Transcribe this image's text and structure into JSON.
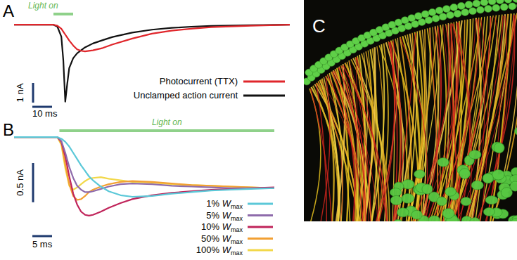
{
  "chart_data": [
    {
      "type": "line",
      "title": "A",
      "x": [
        0,
        15,
        20,
        22,
        24,
        25,
        26,
        27,
        28,
        30,
        32,
        34,
        36,
        40,
        45,
        50,
        60,
        70,
        80,
        90,
        100,
        120,
        140
      ],
      "xlim": [
        0,
        140
      ],
      "ylim": [
        -4.2,
        0.4
      ],
      "tick_labels": false,
      "legend": "bottom-right",
      "light_on": {
        "label": "Light on",
        "start": 20,
        "end": 30
      },
      "x_scale_bar": {
        "value": 10,
        "label": "10 ms"
      },
      "y_scale_bar": {
        "value": 1,
        "label": "1 nA"
      },
      "series": [
        {
          "name": "Photocurrent (TTX)",
          "color": "#e0262b",
          "values": [
            0,
            0,
            0,
            -0.05,
            -0.2,
            -0.35,
            -0.5,
            -0.65,
            -0.8,
            -1.05,
            -1.25,
            -1.32,
            -1.35,
            -1.3,
            -1.18,
            -1.0,
            -0.7,
            -0.45,
            -0.3,
            -0.2,
            -0.12,
            -0.05,
            0
          ]
        },
        {
          "name": "Unclamped action current",
          "color": "#111111",
          "values": [
            0,
            0,
            0,
            -0.1,
            -0.6,
            -1.8,
            -3.9,
            -3.0,
            -2.2,
            -1.7,
            -1.45,
            -1.3,
            -1.15,
            -0.95,
            -0.78,
            -0.62,
            -0.4,
            -0.25,
            -0.16,
            -0.1,
            -0.06,
            -0.02,
            0
          ]
        }
      ]
    },
    {
      "type": "line",
      "title": "B",
      "x": [
        0,
        11,
        12,
        13,
        14,
        15,
        16,
        17,
        18,
        19,
        20,
        22,
        24,
        27,
        30,
        35,
        40,
        45,
        50,
        55,
        60,
        66
      ],
      "xlim": [
        0,
        66
      ],
      "ylim": [
        -1.1,
        0.1
      ],
      "tick_labels": false,
      "legend": "bottom-right",
      "light_on": {
        "label": "Light on",
        "start": 11.5,
        "end": 66
      },
      "x_scale_bar": {
        "value": 5,
        "label": "5 ms"
      },
      "y_scale_bar": {
        "value": 0.5,
        "label": "0.5 nA"
      },
      "series": [
        {
          "name": "1% Wmax",
          "color": "#5bc8d8",
          "values": [
            0,
            0,
            -0.02,
            -0.06,
            -0.12,
            -0.2,
            -0.28,
            -0.36,
            -0.43,
            -0.5,
            -0.55,
            -0.63,
            -0.69,
            -0.74,
            -0.76,
            -0.75,
            -0.72,
            -0.7,
            -0.68,
            -0.67,
            -0.66,
            -0.65
          ]
        },
        {
          "name": "5% Wmax",
          "color": "#8e6bab",
          "values": [
            0,
            0,
            -0.05,
            -0.2,
            -0.38,
            -0.52,
            -0.62,
            -0.67,
            -0.7,
            -0.7,
            -0.69,
            -0.66,
            -0.63,
            -0.6,
            -0.59,
            -0.6,
            -0.62,
            -0.63,
            -0.64,
            -0.65,
            -0.65,
            -0.65
          ]
        },
        {
          "name": "10% Wmax",
          "color": "#c0245a",
          "values": [
            0,
            0,
            -0.06,
            -0.25,
            -0.5,
            -0.72,
            -0.86,
            -0.95,
            -0.99,
            -1.0,
            -0.99,
            -0.95,
            -0.9,
            -0.84,
            -0.79,
            -0.74,
            -0.71,
            -0.69,
            -0.67,
            -0.66,
            -0.65,
            -0.64
          ]
        },
        {
          "name": "50% Wmax",
          "color": "#f2a033",
          "values": [
            0,
            0,
            -0.08,
            -0.35,
            -0.6,
            -0.75,
            -0.8,
            -0.79,
            -0.75,
            -0.7,
            -0.67,
            -0.63,
            -0.6,
            -0.57,
            -0.56,
            -0.57,
            -0.59,
            -0.61,
            -0.62,
            -0.63,
            -0.64,
            -0.65
          ]
        },
        {
          "name": "100% Wmax",
          "color": "#f2d84a",
          "values": [
            0,
            0,
            -0.1,
            -0.4,
            -0.62,
            -0.67,
            -0.64,
            -0.6,
            -0.56,
            -0.53,
            -0.52,
            -0.51,
            -0.53,
            -0.55,
            -0.57,
            -0.58,
            -0.6,
            -0.61,
            -0.62,
            -0.63,
            -0.64,
            -0.65
          ]
        }
      ]
    }
  ],
  "image_panel": {
    "label": "C"
  }
}
